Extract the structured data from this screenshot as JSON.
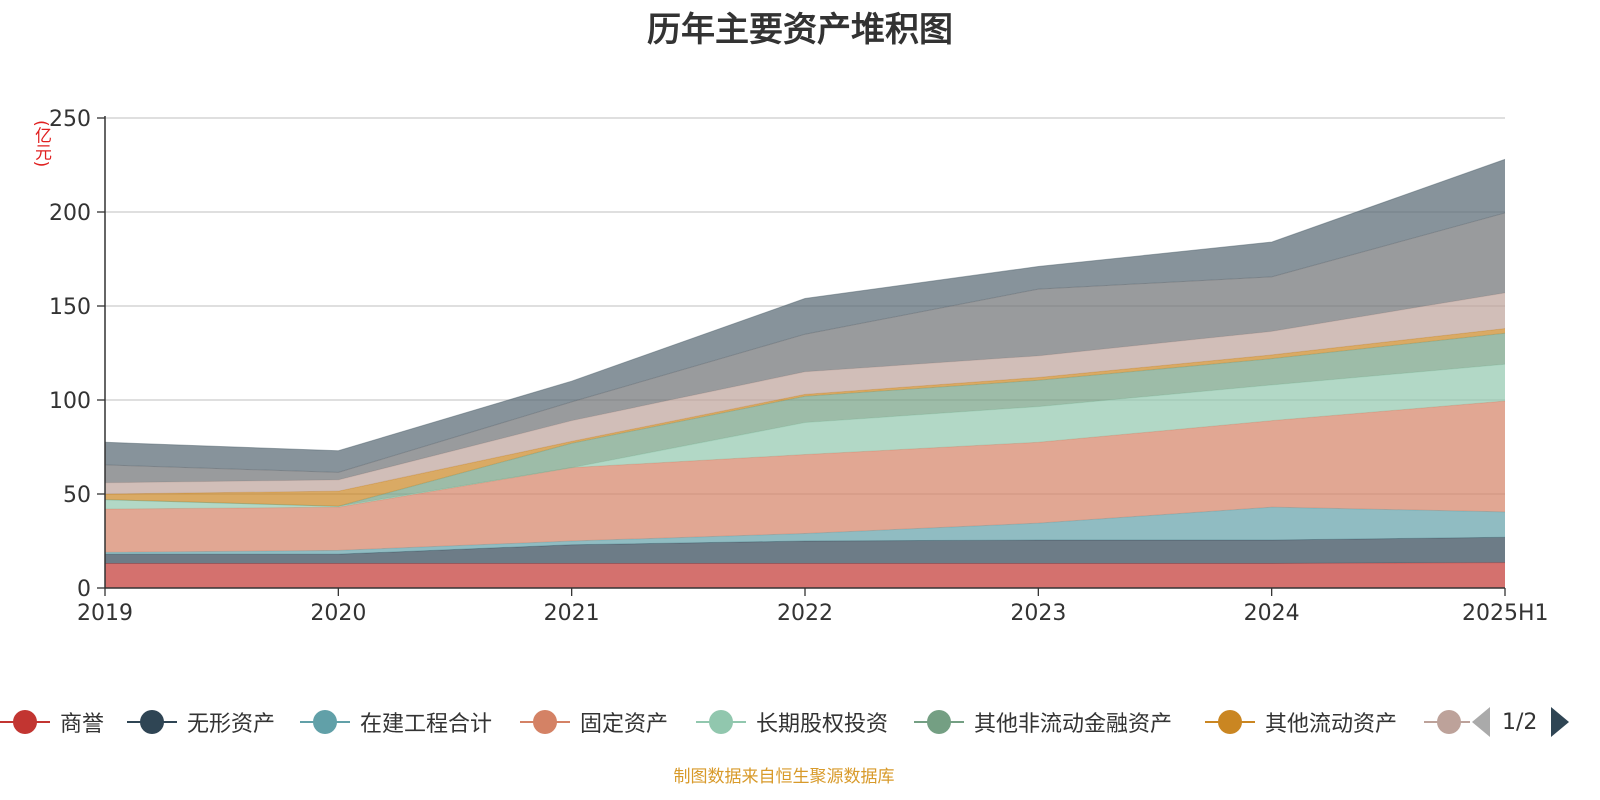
{
  "chart_data": {
    "type": "area",
    "stacked": true,
    "title": "历年主要资产堆积图",
    "unit_label": "(亿元)",
    "categories": [
      "2019",
      "2020",
      "2021",
      "2022",
      "2023",
      "2024",
      "2025H1"
    ],
    "ylim": [
      0,
      250
    ],
    "yticks": [
      0,
      50,
      100,
      150,
      200,
      250
    ],
    "grid": true,
    "legend_position": "bottom",
    "series": [
      {
        "name": "商誉",
        "color": "#c23531",
        "values": [
          13,
          13,
          13,
          13,
          13,
          13,
          13.5
        ]
      },
      {
        "name": "无形资产",
        "color": "#2f4554",
        "values": [
          5,
          5,
          10,
          12,
          12.5,
          12.5,
          13.5
        ]
      },
      {
        "name": "在建工程合计",
        "color": "#61a0a8",
        "values": [
          1,
          2,
          2,
          4,
          9,
          17.5,
          13.5
        ]
      },
      {
        "name": "固定资产",
        "color": "#d48265",
        "values": [
          23,
          23,
          39,
          42,
          43,
          46,
          59
        ]
      },
      {
        "name": "长期股权投资",
        "color": "#91c7ae",
        "values": [
          5,
          0.5,
          0,
          17,
          19,
          19,
          19.5
        ]
      },
      {
        "name": "其他非流动金融资产",
        "color": "#749f83",
        "values": [
          0,
          0,
          13,
          14,
          14,
          14,
          16.5
        ]
      },
      {
        "name": "其他流动资产",
        "color": "#ca8622",
        "values": [
          3,
          8,
          1,
          1,
          1.5,
          2,
          2.5
        ]
      },
      {
        "name": "",
        "color": "#bda29a",
        "values": [
          6,
          6,
          11,
          12,
          11.5,
          12.5,
          19
        ]
      },
      {
        "name": "",
        "color": "#6e7074",
        "values": [
          9.5,
          4,
          10,
          20,
          35.5,
          29,
          42.5
        ]
      },
      {
        "name": "",
        "color": "#546570",
        "values": [
          12,
          11.5,
          11,
          19,
          12,
          18.5,
          28.5
        ]
      }
    ]
  },
  "legend": {
    "visible_items": [
      {
        "label": "商誉",
        "color": "#c23531"
      },
      {
        "label": "无形资产",
        "color": "#2f4554"
      },
      {
        "label": "在建工程合计",
        "color": "#61a0a8"
      },
      {
        "label": "固定资产",
        "color": "#d48265"
      },
      {
        "label": "长期股权投资",
        "color": "#91c7ae"
      },
      {
        "label": "其他非流动金融资产",
        "color": "#749f83"
      },
      {
        "label": "其他流动资产",
        "color": "#ca8622"
      },
      {
        "label": "",
        "color": "#bda29a"
      }
    ],
    "page_text": "1/2"
  },
  "source_text": "制图数据来自恒生聚源数据库"
}
